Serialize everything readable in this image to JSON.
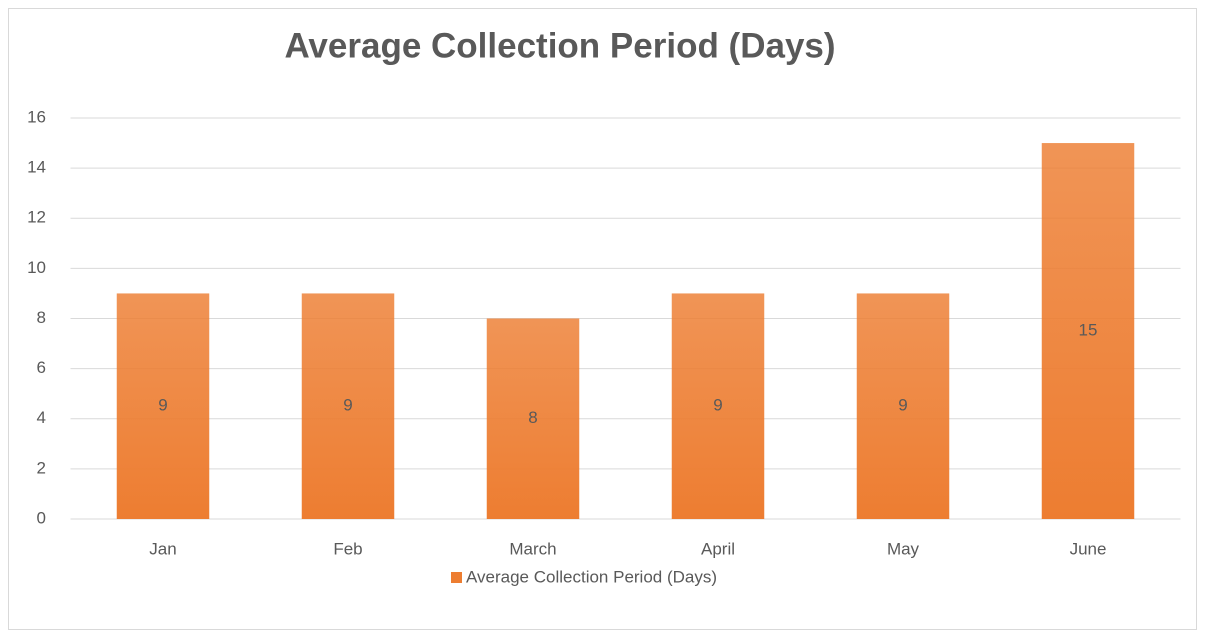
{
  "chart_data": {
    "type": "bar",
    "title": "Average Collection Period (Days)",
    "categories": [
      "Jan",
      "Feb",
      "March",
      "April",
      "May",
      "June"
    ],
    "series": [
      {
        "name": "Average Collection Period (Days)",
        "color": "#ed7d31",
        "values": [
          9,
          9,
          8,
          9,
          9,
          15
        ]
      }
    ],
    "ylim": [
      0,
      16
    ],
    "yticks": [
      0,
      2,
      4,
      6,
      8,
      10,
      12,
      14,
      16
    ],
    "grid": true,
    "legend": "bottom"
  }
}
